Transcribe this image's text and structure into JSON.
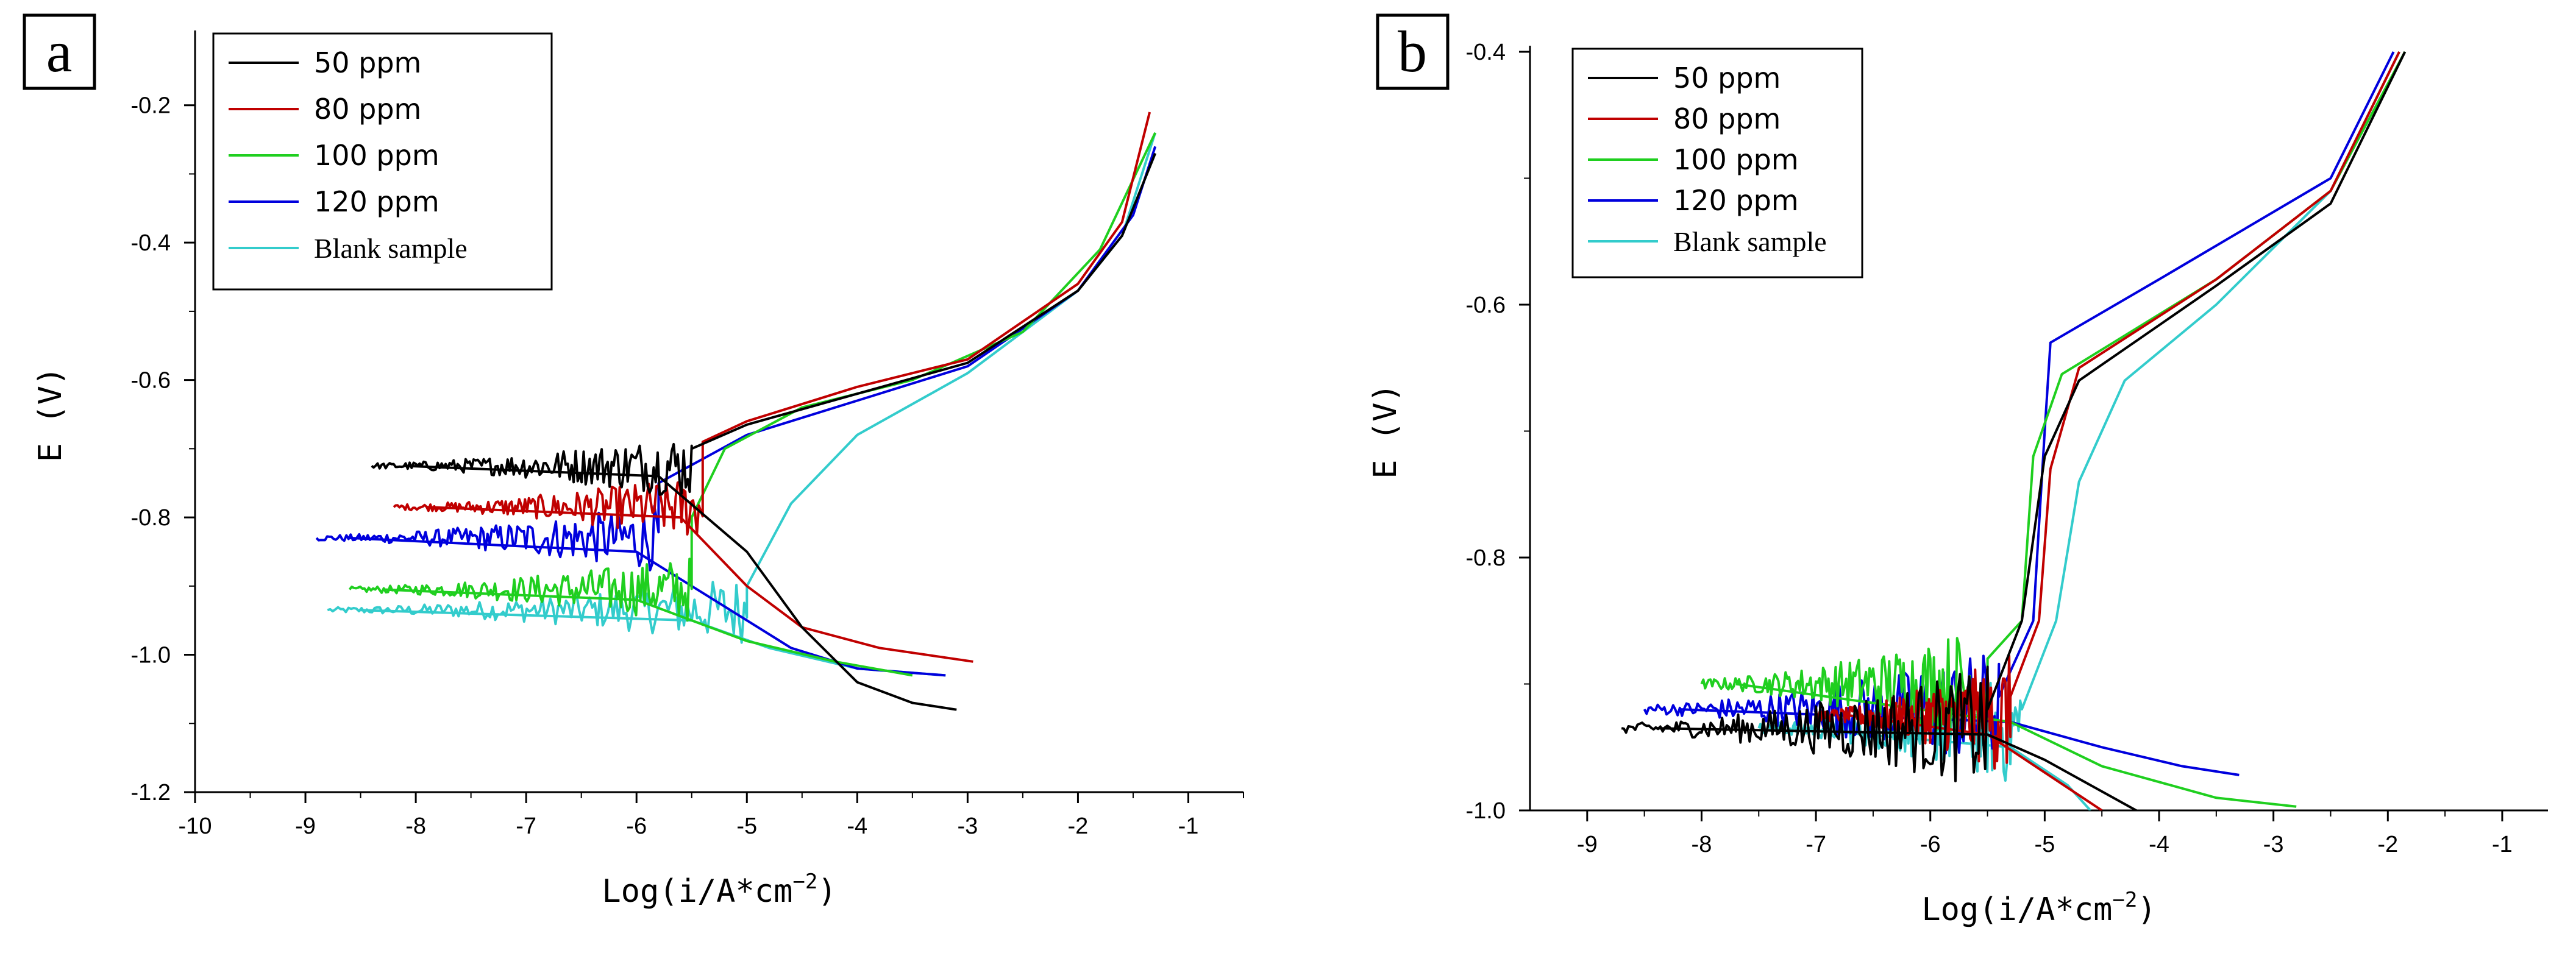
{
  "chart_data": [
    {
      "panel": "a",
      "type": "line",
      "xlabel": "Log(i/A*cm^-2)",
      "ylabel": "E (V)",
      "xlim": [
        -10,
        -0.5
      ],
      "ylim": [
        -1.2,
        -0.1
      ],
      "xticks": [
        "-10",
        "-9",
        "-8",
        "-7",
        "-6",
        "-5",
        "-4",
        "-3",
        "-2",
        "-1"
      ],
      "yticks": [
        "-1.2",
        "-1.0",
        "-0.8",
        "-0.6",
        "-0.4",
        "-0.2"
      ],
      "legend_position": "top-left",
      "series": [
        {
          "name": "50 ppm",
          "color": "#000000",
          "ecorr": -0.725,
          "x_start": -8.4,
          "anodic": [
            [
              -5.5,
              -0.7
            ],
            [
              -5.0,
              -0.665
            ],
            [
              -4.0,
              -0.62
            ],
            [
              -3.0,
              -0.575
            ],
            [
              -2.0,
              -0.47
            ],
            [
              -1.6,
              -0.39
            ],
            [
              -1.3,
              -0.27
            ]
          ],
          "cathodic": [
            [
              -5.8,
              -0.74
            ],
            [
              -5.0,
              -0.85
            ],
            [
              -4.5,
              -0.96
            ],
            [
              -4.0,
              -1.04
            ],
            [
              -3.5,
              -1.07
            ],
            [
              -3.1,
              -1.08
            ]
          ]
        },
        {
          "name": "80 ppm",
          "color": "#c00000",
          "ecorr": -0.785,
          "x_start": -8.2,
          "anodic": [
            [
              -5.4,
              -0.69
            ],
            [
              -5.0,
              -0.66
            ],
            [
              -4.0,
              -0.61
            ],
            [
              -3.0,
              -0.57
            ],
            [
              -2.0,
              -0.46
            ],
            [
              -1.6,
              -0.37
            ],
            [
              -1.35,
              -0.21
            ]
          ],
          "cathodic": [
            [
              -5.6,
              -0.8
            ],
            [
              -5.0,
              -0.9
            ],
            [
              -4.5,
              -0.96
            ],
            [
              -3.8,
              -0.99
            ],
            [
              -2.95,
              -1.01
            ]
          ]
        },
        {
          "name": "100 ppm",
          "color": "#1fcf1f",
          "ecorr": -0.905,
          "x_start": -8.6,
          "anodic": [
            [
              -5.5,
              -0.8
            ],
            [
              -5.2,
              -0.7
            ],
            [
              -4.5,
              -0.64
            ],
            [
              -3.5,
              -0.6
            ],
            [
              -2.5,
              -0.53
            ],
            [
              -1.8,
              -0.41
            ],
            [
              -1.3,
              -0.24
            ]
          ],
          "cathodic": [
            [
              -6.0,
              -0.92
            ],
            [
              -5.0,
              -0.98
            ],
            [
              -4.2,
              -1.01
            ],
            [
              -3.5,
              -1.03
            ]
          ]
        },
        {
          "name": "120 ppm",
          "color": "#0000dd",
          "ecorr": -0.83,
          "x_start": -8.9,
          "anodic": [
            [
              -5.8,
              -0.75
            ],
            [
              -5.0,
              -0.68
            ],
            [
              -4.0,
              -0.63
            ],
            [
              -3.0,
              -0.58
            ],
            [
              -2.0,
              -0.47
            ],
            [
              -1.5,
              -0.36
            ],
            [
              -1.3,
              -0.26
            ]
          ],
          "cathodic": [
            [
              -6.0,
              -0.85
            ],
            [
              -5.2,
              -0.93
            ],
            [
              -4.6,
              -0.99
            ],
            [
              -4.0,
              -1.02
            ],
            [
              -3.2,
              -1.03
            ]
          ]
        },
        {
          "name": "Blank sample",
          "color": "#33cccc",
          "ecorr": -0.935,
          "x_start": -8.8,
          "anodic": [
            [
              -5.0,
              -0.9
            ],
            [
              -4.6,
              -0.78
            ],
            [
              -4.0,
              -0.68
            ],
            [
              -3.0,
              -0.59
            ],
            [
              -2.0,
              -0.47
            ],
            [
              -1.6,
              -0.39
            ],
            [
              -1.3,
              -0.24
            ]
          ],
          "cathodic": [
            [
              -5.5,
              -0.95
            ],
            [
              -4.8,
              -0.99
            ],
            [
              -4.0,
              -1.02
            ],
            [
              -3.2,
              -1.03
            ]
          ]
        }
      ]
    },
    {
      "panel": "b",
      "type": "line",
      "xlabel": "Log(i/A*cm^-2)",
      "ylabel": "E (V)",
      "xlim": [
        -9.5,
        -0.6
      ],
      "ylim": [
        -1.0,
        -0.4
      ],
      "xticks": [
        "-9",
        "-8",
        "-7",
        "-6",
        "-5",
        "-4",
        "-3",
        "-2",
        "-1"
      ],
      "yticks": [
        "-1.0",
        "-0.8",
        "-0.6",
        "-0.4"
      ],
      "legend_position": "top-left",
      "series": [
        {
          "name": "50 ppm",
          "color": "#000000",
          "ecorr": -0.935,
          "x_start": -8.7,
          "anodic": [
            [
              -5.5,
              -0.92
            ],
            [
              -5.2,
              -0.85
            ],
            [
              -5.0,
              -0.72
            ],
            [
              -4.7,
              -0.66
            ],
            [
              -3.5,
              -0.585
            ],
            [
              -2.5,
              -0.52
            ],
            [
              -1.85,
              -0.4
            ]
          ],
          "cathodic": [
            [
              -5.5,
              -0.94
            ],
            [
              -5.0,
              -0.96
            ],
            [
              -4.5,
              -0.985
            ],
            [
              -4.2,
              -1.0
            ]
          ]
        },
        {
          "name": "80 ppm",
          "color": "#c00000",
          "ecorr": -0.925,
          "x_start": -7.0,
          "anodic": [
            [
              -5.3,
              -0.91
            ],
            [
              -5.05,
              -0.85
            ],
            [
              -4.95,
              -0.73
            ],
            [
              -4.7,
              -0.65
            ],
            [
              -3.5,
              -0.58
            ],
            [
              -2.5,
              -0.51
            ],
            [
              -1.9,
              -0.4
            ]
          ],
          "cathodic": [
            [
              -5.5,
              -0.94
            ],
            [
              -5.0,
              -0.97
            ],
            [
              -4.5,
              -1.0
            ]
          ]
        },
        {
          "name": "100 ppm",
          "color": "#1fcf1f",
          "ecorr": -0.9,
          "x_start": -8.0,
          "anodic": [
            [
              -5.5,
              -0.88
            ],
            [
              -5.2,
              -0.85
            ],
            [
              -5.1,
              -0.72
            ],
            [
              -4.85,
              -0.655
            ],
            [
              -3.5,
              -0.58
            ],
            [
              -2.5,
              -0.51
            ],
            [
              -1.85,
              -0.4
            ]
          ],
          "cathodic": [
            [
              -5.3,
              -0.93
            ],
            [
              -4.5,
              -0.965
            ],
            [
              -3.5,
              -0.99
            ],
            [
              -2.8,
              -0.997
            ]
          ]
        },
        {
          "name": "120 ppm",
          "color": "#0000dd",
          "ecorr": -0.92,
          "x_start": -8.5,
          "anodic": [
            [
              -5.4,
              -0.91
            ],
            [
              -5.1,
              -0.85
            ],
            [
              -5.0,
              -0.7
            ],
            [
              -4.95,
              -0.63
            ],
            [
              -4.0,
              -0.58
            ],
            [
              -2.5,
              -0.5
            ],
            [
              -1.95,
              -0.4
            ]
          ],
          "cathodic": [
            [
              -5.3,
              -0.93
            ],
            [
              -4.5,
              -0.95
            ],
            [
              -3.8,
              -0.965
            ],
            [
              -3.3,
              -0.972
            ]
          ]
        },
        {
          "name": "Blank sample",
          "color": "#33cccc",
          "ecorr": -0.935,
          "x_start": -7.5,
          "anodic": [
            [
              -5.2,
              -0.92
            ],
            [
              -4.9,
              -0.85
            ],
            [
              -4.7,
              -0.74
            ],
            [
              -4.3,
              -0.66
            ],
            [
              -3.5,
              -0.6
            ],
            [
              -2.5,
              -0.51
            ],
            [
              -1.9,
              -0.4
            ]
          ],
          "cathodic": [
            [
              -5.3,
              -0.95
            ],
            [
              -4.8,
              -0.98
            ],
            [
              -4.6,
              -1.0
            ]
          ]
        }
      ]
    }
  ],
  "ui": {
    "panel_a_label": "a",
    "panel_b_label": "b",
    "xlabel_text": "Log(i/A*cm",
    "xlabel_exp": "−2",
    "xlabel_close": ")",
    "ylabel_text": "E (V)"
  }
}
